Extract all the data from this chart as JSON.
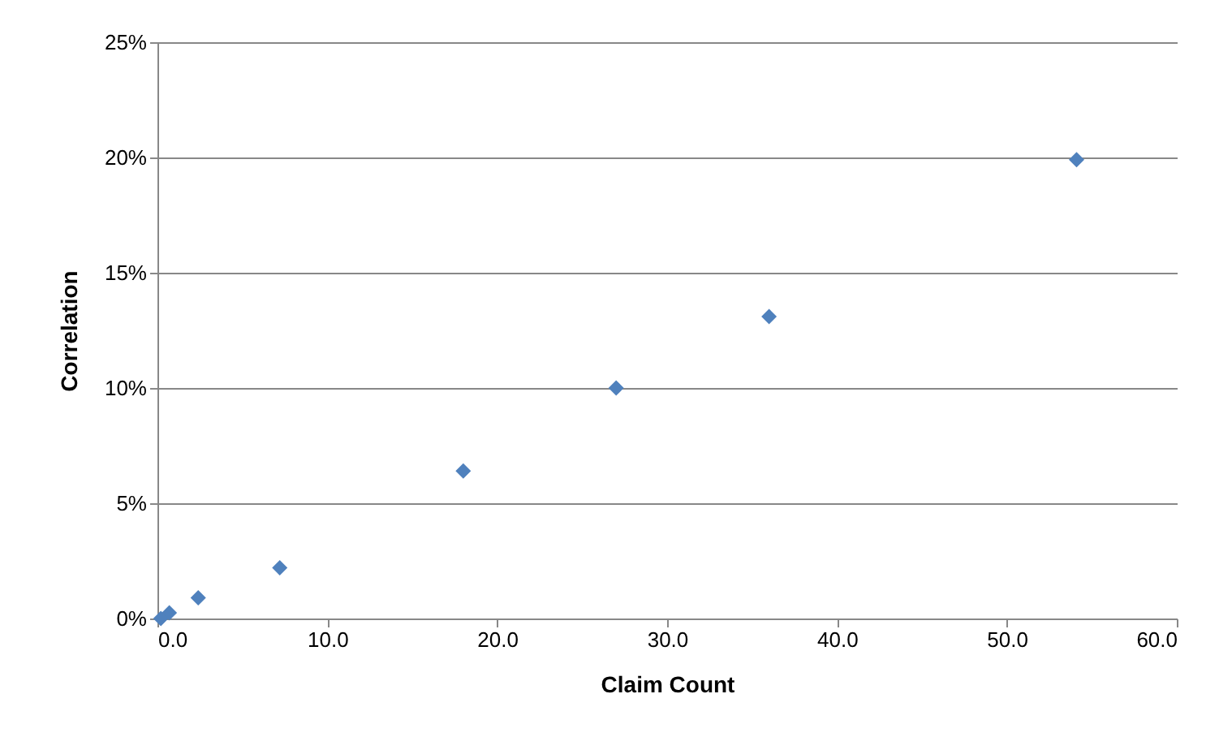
{
  "chart_data": {
    "type": "scatter",
    "xlabel": "Claim Count",
    "ylabel": "Correlation",
    "series": [
      {
        "color": "#4f81bd",
        "x": [
          0.2,
          0.7,
          2.4,
          7.2,
          18.0,
          27.0,
          36.0,
          54.1
        ],
        "values": [
          0.0,
          0.25,
          0.9,
          2.2,
          6.4,
          10.0,
          13.1,
          19.9
        ]
      }
    ],
    "xlim": [
      0,
      60
    ],
    "ylim": [
      0,
      25
    ],
    "xticks": [
      {
        "value": 0,
        "label": "0.0"
      },
      {
        "value": 10,
        "label": "10.0"
      },
      {
        "value": 20,
        "label": "20.0"
      },
      {
        "value": 30,
        "label": "30.0"
      },
      {
        "value": 40,
        "label": "40.0"
      },
      {
        "value": 50,
        "label": "50.0"
      },
      {
        "value": 60,
        "label": "60.0"
      }
    ],
    "yticks": [
      {
        "value": 0,
        "label": "0%"
      },
      {
        "value": 5,
        "label": "5%"
      },
      {
        "value": 10,
        "label": "10%"
      },
      {
        "value": 15,
        "label": "15%"
      },
      {
        "value": 20,
        "label": "20%"
      },
      {
        "value": 25,
        "label": "25%"
      }
    ],
    "grid": "y",
    "marker": "diamond",
    "legend": false
  }
}
